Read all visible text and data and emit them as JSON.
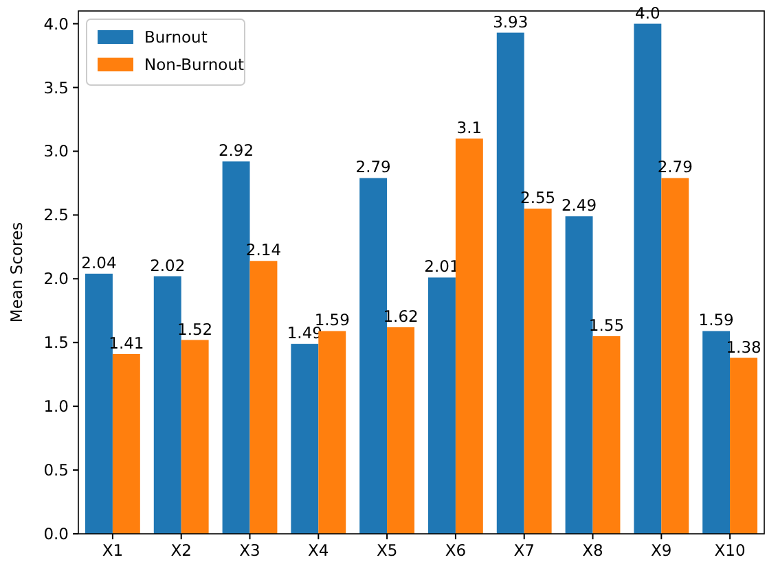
{
  "chart_data": {
    "type": "bar",
    "ylabel": "Mean Scores",
    "categories": [
      "X1",
      "X2",
      "X3",
      "X4",
      "X5",
      "X6",
      "X7",
      "X8",
      "X9",
      "X10"
    ],
    "series": [
      {
        "name": "Burnout",
        "color": "#1f77b4",
        "values": [
          2.04,
          2.02,
          2.92,
          1.49,
          2.79,
          2.01,
          3.93,
          2.49,
          4.0,
          1.59
        ],
        "value_labels": [
          "2.04",
          "2.02",
          "2.92",
          "1.49",
          "2.79",
          "2.01",
          "3.93",
          "2.49",
          "4.0",
          "1.59"
        ]
      },
      {
        "name": "Non-Burnout",
        "color": "#ff7f0e",
        "values": [
          1.41,
          1.52,
          2.14,
          1.59,
          1.62,
          3.1,
          2.55,
          1.55,
          2.79,
          1.38
        ],
        "value_labels": [
          "1.41",
          "1.52",
          "2.14",
          "1.59",
          "1.62",
          "3.1",
          "2.55",
          "1.55",
          "2.79",
          "1.38"
        ]
      }
    ],
    "ylim": [
      0,
      4.1
    ],
    "yticks": [
      {
        "value": 0,
        "label": "0.0"
      },
      {
        "value": 0.5,
        "label": "0.5"
      },
      {
        "value": 1,
        "label": "1.0"
      },
      {
        "value": 1.5,
        "label": "1.5"
      },
      {
        "value": 2,
        "label": "2.0"
      },
      {
        "value": 2.5,
        "label": "2.5"
      },
      {
        "value": 3,
        "label": "3.0"
      },
      {
        "value": 3.5,
        "label": "3.5"
      },
      {
        "value": 4,
        "label": "4.0"
      }
    ],
    "grid": false,
    "legend": "top left"
  }
}
